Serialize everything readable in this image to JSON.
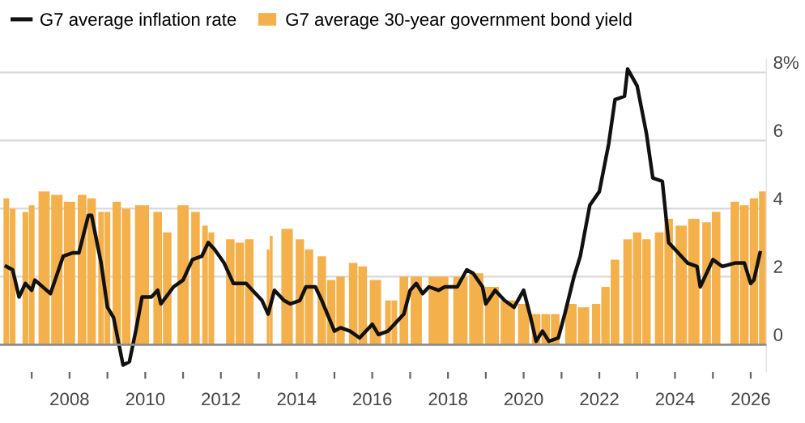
{
  "chart_data": {
    "type": "bar",
    "series": [
      {
        "name": "G7 average inflation rate",
        "type": "line",
        "color": "#111111",
        "x": [
          "2006-05",
          "2006-07",
          "2006-09",
          "2006-11",
          "2007-01",
          "2007-02",
          "2007-07",
          "2007-11",
          "2008-02",
          "2008-04",
          "2008-07",
          "2008-08",
          "2008-11",
          "2009-01",
          "2009-03",
          "2009-06",
          "2009-08",
          "2009-10",
          "2009-12",
          "2010-03",
          "2010-05",
          "2010-06",
          "2010-10",
          "2011-01",
          "2011-04",
          "2011-07",
          "2011-09",
          "2011-11",
          "2012-02",
          "2012-05",
          "2012-09",
          "2012-11",
          "2013-02",
          "2013-04",
          "2013-06",
          "2013-09",
          "2013-11",
          "2014-02",
          "2014-04",
          "2014-07",
          "2014-09",
          "2015-01",
          "2015-03",
          "2015-06",
          "2015-09",
          "2016-01",
          "2016-03",
          "2016-06",
          "2016-08",
          "2016-11",
          "2017-01",
          "2017-03",
          "2017-05",
          "2017-07",
          "2017-10",
          "2017-12",
          "2018-04",
          "2018-07",
          "2018-09",
          "2018-12",
          "2019-01",
          "2019-04",
          "2019-07",
          "2019-10",
          "2020-01",
          "2020-03",
          "2020-05",
          "2020-07",
          "2020-09",
          "2020-12",
          "2021-02",
          "2021-05",
          "2021-07",
          "2021-10",
          "2022-01",
          "2022-04",
          "2022-06",
          "2022-09",
          "2022-10",
          "2023-01",
          "2023-04",
          "2023-06",
          "2023-09",
          "2023-11",
          "2024-02",
          "2024-05",
          "2024-08",
          "2024-09",
          "2025-01",
          "2025-04",
          "2025-08",
          "2025-11",
          "2026-01",
          "2026-02",
          "2026-04"
        ],
        "values": [
          2.3,
          2.2,
          1.4,
          1.8,
          1.6,
          1.9,
          1.5,
          2.6,
          2.7,
          2.7,
          3.8,
          3.8,
          2.4,
          1.1,
          0.8,
          -0.6,
          -0.5,
          0.4,
          1.4,
          1.4,
          1.6,
          1.2,
          1.7,
          1.9,
          2.5,
          2.6,
          3.0,
          2.8,
          2.4,
          1.8,
          1.8,
          1.6,
          1.3,
          0.9,
          1.6,
          1.3,
          1.2,
          1.3,
          1.7,
          1.7,
          1.3,
          0.4,
          0.5,
          0.4,
          0.2,
          0.6,
          0.3,
          0.4,
          0.6,
          0.9,
          1.6,
          1.8,
          1.5,
          1.7,
          1.6,
          1.7,
          1.7,
          2.2,
          2.1,
          1.7,
          1.2,
          1.6,
          1.3,
          1.1,
          1.6,
          0.9,
          0.1,
          0.4,
          0.1,
          0.2,
          0.9,
          2.0,
          2.6,
          4.1,
          4.5,
          5.9,
          7.2,
          7.3,
          8.1,
          7.6,
          6.2,
          4.9,
          4.8,
          3.0,
          2.7,
          2.4,
          2.3,
          1.7,
          2.5,
          2.3,
          2.4,
          2.4,
          1.8,
          1.9,
          2.7
        ]
      },
      {
        "name": "G7 average 30-year government bond yield",
        "color": "#f4b04a",
        "x": [
          "2006-05",
          "2006-07",
          "2006-11",
          "2007-01",
          "2007-05",
          "2007-09",
          "2008-01",
          "2008-05",
          "2008-08",
          "2008-11",
          "2009-01",
          "2009-04",
          "2009-07",
          "2009-12",
          "2010-05",
          "2010-08",
          "2011-01",
          "2011-05",
          "2011-08",
          "2011-10",
          "2012-04",
          "2012-07",
          "2012-10",
          "2013-04",
          "2013-05",
          "2013-10",
          "2014-02",
          "2014-05",
          "2014-09",
          "2014-12",
          "2015-03",
          "2015-07",
          "2015-10",
          "2016-02",
          "2016-06",
          "2016-08",
          "2016-11",
          "2017-03",
          "2017-10",
          "2018-05",
          "2018-10",
          "2019-03",
          "2019-08",
          "2020-01",
          "2020-05",
          "2020-08",
          "2020-11",
          "2021-04",
          "2021-08",
          "2021-12",
          "2022-03",
          "2022-06",
          "2022-10",
          "2023-01",
          "2023-04",
          "2023-08",
          "2023-11",
          "2024-03",
          "2024-07",
          "2024-11",
          "2025-02",
          "2025-08",
          "2025-11",
          "2026-02",
          "2026-05"
        ],
        "values": [
          4.3,
          4.0,
          3.9,
          4.1,
          4.5,
          4.4,
          4.2,
          4.4,
          4.3,
          3.9,
          3.9,
          4.2,
          4.0,
          4.1,
          3.9,
          3.3,
          4.1,
          3.9,
          3.5,
          3.3,
          3.1,
          3.0,
          3.1,
          2.8,
          3.2,
          3.4,
          3.1,
          2.8,
          2.6,
          1.9,
          2.0,
          2.4,
          2.3,
          1.9,
          1.3,
          1.3,
          2.0,
          2.0,
          2.0,
          2.0,
          2.1,
          1.7,
          1.3,
          1.2,
          0.9,
          0.9,
          0.9,
          1.2,
          1.1,
          1.2,
          1.7,
          2.5,
          3.1,
          3.3,
          3.1,
          3.3,
          3.7,
          3.5,
          3.7,
          3.6,
          3.9,
          4.2,
          4.1,
          4.3,
          4.5
        ]
      }
    ],
    "xlim": [
      "2006-03",
      "2026-06"
    ],
    "xticks": [
      {
        "value": "2007",
        "label": null
      },
      {
        "value": "2008",
        "label": "2008"
      },
      {
        "value": "2009",
        "label": null
      },
      {
        "value": "2010",
        "label": "2010"
      },
      {
        "value": "2011",
        "label": null
      },
      {
        "value": "2012",
        "label": "2012"
      },
      {
        "value": "2013",
        "label": null
      },
      {
        "value": "2014",
        "label": "2014"
      },
      {
        "value": "2015",
        "label": null
      },
      {
        "value": "2016",
        "label": "2016"
      },
      {
        "value": "2017",
        "label": null
      },
      {
        "value": "2018",
        "label": "2018"
      },
      {
        "value": "2019",
        "label": null
      },
      {
        "value": "2020",
        "label": "2020"
      },
      {
        "value": "2021",
        "label": null
      },
      {
        "value": "2022",
        "label": "2022"
      },
      {
        "value": "2023",
        "label": null
      },
      {
        "value": "2024",
        "label": "2024"
      },
      {
        "value": "2025",
        "label": null
      },
      {
        "value": "2026",
        "label": "2026"
      }
    ],
    "ylim": [
      -0.8,
      8.4
    ],
    "yticks": [
      0,
      2,
      4,
      6,
      {
        "value": 8,
        "label": "8%"
      }
    ],
    "ref_lines": [
      {
        "axis": "y",
        "value": 0,
        "color": "#8c8c8c"
      }
    ],
    "grid": "y",
    "legend": "top left"
  }
}
